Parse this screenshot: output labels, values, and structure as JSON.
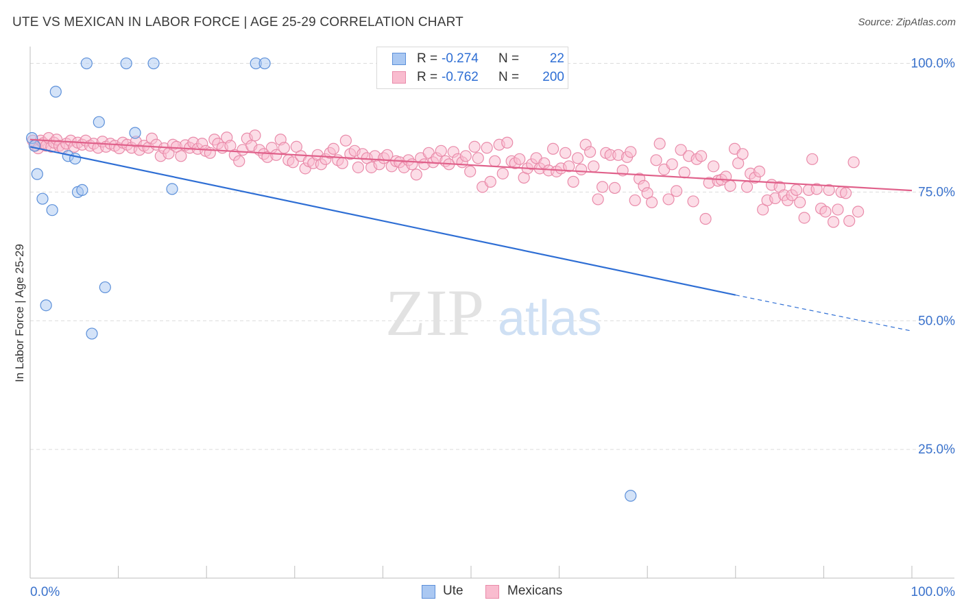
{
  "title": "UTE VS MEXICAN IN LABOR FORCE | AGE 25-29 CORRELATION CHART",
  "source": "Source: ZipAtlas.com",
  "watermark": {
    "zip": "ZIP",
    "atlas": "atlas"
  },
  "legend": {
    "r_label": "R =",
    "n_label": "N =",
    "rows": [
      {
        "r": "-0.274",
        "n": "22"
      },
      {
        "r": "-0.762",
        "n": "200"
      }
    ]
  },
  "colors": {
    "ute_fill": "#aac8f2",
    "ute_stroke": "#5b8fd9",
    "ute_line": "#2e6ed4",
    "mex_fill": "#f9bccf",
    "mex_stroke": "#e98aa9",
    "mex_line": "#e0608a",
    "axis_text": "#3a72cc",
    "grid": "#dcdcdc"
  },
  "chart_data": {
    "type": "scatter",
    "title": "UTE VS MEXICAN IN LABOR FORCE | AGE 25-29 CORRELATION CHART",
    "xlabel": "",
    "ylabel": "In Labor Force | Age 25-29",
    "xlim": [
      0,
      100
    ],
    "ylim": [
      0,
      103
    ],
    "x_tick_labels": [
      "0.0%",
      "100.0%"
    ],
    "y_ticks": [
      25,
      50,
      75,
      100
    ],
    "y_tick_labels": [
      "25.0%",
      "50.0%",
      "75.0%",
      "100.0%"
    ],
    "grid": true,
    "legend_position": "top-center",
    "series": [
      {
        "name": "Ute",
        "r": -0.274,
        "n": 22,
        "points": [
          [
            0.2,
            85.5
          ],
          [
            0.5,
            84.0
          ],
          [
            0.8,
            78.5
          ],
          [
            1.4,
            73.7
          ],
          [
            2.5,
            71.5
          ],
          [
            2.9,
            94.5
          ],
          [
            4.3,
            82.0
          ],
          [
            5.1,
            81.5
          ],
          [
            5.4,
            75.0
          ],
          [
            5.9,
            75.4
          ],
          [
            6.4,
            100.0
          ],
          [
            7.8,
            88.6
          ],
          [
            8.5,
            56.5
          ],
          [
            1.8,
            53.0
          ],
          [
            7.0,
            47.5
          ],
          [
            10.9,
            100.0
          ],
          [
            14.0,
            100.0
          ],
          [
            11.9,
            86.5
          ],
          [
            16.1,
            75.6
          ],
          [
            25.6,
            100.0
          ],
          [
            26.6,
            100.0
          ],
          [
            68.1,
            16.0
          ]
        ],
        "trend": {
          "x0": 0,
          "y0": 83.8,
          "x1": 80,
          "y1": 55.0,
          "dashed_to_x": 100,
          "dashed_to_y": 48.0
        }
      },
      {
        "name": "Mexicans",
        "r": -0.762,
        "n": 200,
        "points": [
          [
            0.3,
            85
          ],
          [
            0.6,
            84
          ],
          [
            0.9,
            83.5
          ],
          [
            1.2,
            85
          ],
          [
            1.5,
            84.5
          ],
          [
            1.8,
            84
          ],
          [
            2.1,
            85.5
          ],
          [
            2.4,
            83.8
          ],
          [
            2.7,
            84.6
          ],
          [
            3.0,
            85.2
          ],
          [
            3.3,
            84
          ],
          [
            3.7,
            83.5
          ],
          [
            4.1,
            84.4
          ],
          [
            4.6,
            85
          ],
          [
            5.0,
            83.8
          ],
          [
            5.4,
            84.6
          ],
          [
            5.9,
            84.2
          ],
          [
            6.3,
            85
          ],
          [
            6.8,
            84
          ],
          [
            7.2,
            84.4
          ],
          [
            7.7,
            83.6
          ],
          [
            8.2,
            84.8
          ],
          [
            8.6,
            83.8
          ],
          [
            9.1,
            84.4
          ],
          [
            9.6,
            84
          ],
          [
            10.1,
            83.5
          ],
          [
            10.5,
            84.6
          ],
          [
            11.0,
            84.2
          ],
          [
            11.5,
            83.6
          ],
          [
            12.0,
            84.8
          ],
          [
            12.4,
            83.2
          ],
          [
            12.9,
            84
          ],
          [
            13.4,
            83.6
          ],
          [
            13.8,
            85.4
          ],
          [
            14.3,
            84.2
          ],
          [
            14.8,
            82
          ],
          [
            15.2,
            83.5
          ],
          [
            15.7,
            82.5
          ],
          [
            16.2,
            84.2
          ],
          [
            16.6,
            83.8
          ],
          [
            17.1,
            82
          ],
          [
            17.6,
            84.1
          ],
          [
            18.1,
            83.6
          ],
          [
            18.5,
            84.6
          ],
          [
            19.0,
            83.4
          ],
          [
            19.5,
            84.4
          ],
          [
            19.9,
            83.0
          ],
          [
            20.4,
            82.6
          ],
          [
            20.9,
            85.2
          ],
          [
            21.3,
            84.4
          ],
          [
            21.8,
            83.6
          ],
          [
            22.3,
            85.6
          ],
          [
            22.7,
            84.0
          ],
          [
            23.2,
            82.2
          ],
          [
            23.7,
            81.0
          ],
          [
            24.1,
            83.2
          ],
          [
            24.6,
            85.4
          ],
          [
            25.1,
            84.0
          ],
          [
            25.5,
            86.0
          ],
          [
            26.0,
            83.2
          ],
          [
            26.5,
            82.4
          ],
          [
            26.9,
            81.8
          ],
          [
            27.4,
            83.6
          ],
          [
            27.9,
            82.2
          ],
          [
            28.4,
            85.2
          ],
          [
            28.8,
            83.6
          ],
          [
            29.3,
            81.2
          ],
          [
            29.8,
            80.8
          ],
          [
            30.2,
            83.8
          ],
          [
            30.7,
            82.0
          ],
          [
            31.2,
            79.6
          ],
          [
            31.6,
            81.0
          ],
          [
            32.1,
            80.6
          ],
          [
            32.6,
            82.2
          ],
          [
            33.0,
            80.4
          ],
          [
            33.5,
            81.4
          ],
          [
            34.0,
            82.6
          ],
          [
            34.4,
            83.4
          ],
          [
            34.9,
            81.2
          ],
          [
            35.4,
            80.6
          ],
          [
            35.8,
            85.0
          ],
          [
            36.3,
            82.4
          ],
          [
            36.8,
            83.0
          ],
          [
            37.2,
            79.8
          ],
          [
            37.7,
            82.4
          ],
          [
            38.2,
            81.6
          ],
          [
            38.7,
            79.8
          ],
          [
            39.1,
            82.0
          ],
          [
            39.6,
            80.4
          ],
          [
            40.1,
            81.6
          ],
          [
            40.5,
            82.2
          ],
          [
            41.0,
            80.0
          ],
          [
            41.5,
            81.0
          ],
          [
            41.9,
            80.8
          ],
          [
            42.4,
            79.8
          ],
          [
            42.9,
            81.2
          ],
          [
            43.3,
            80.4
          ],
          [
            43.8,
            78.4
          ],
          [
            44.3,
            81.6
          ],
          [
            44.7,
            80.4
          ],
          [
            45.2,
            82.6
          ],
          [
            45.7,
            80.8
          ],
          [
            46.1,
            81.6
          ],
          [
            46.6,
            83.0
          ],
          [
            47.1,
            81.0
          ],
          [
            47.5,
            80.4
          ],
          [
            48.0,
            82.8
          ],
          [
            48.5,
            81.4
          ],
          [
            49.0,
            80.8
          ],
          [
            49.4,
            82.0
          ],
          [
            49.9,
            79.0
          ],
          [
            50.4,
            83.8
          ],
          [
            50.8,
            81.6
          ],
          [
            51.3,
            76.0
          ],
          [
            51.8,
            83.6
          ],
          [
            52.2,
            77.0
          ],
          [
            52.7,
            81.0
          ],
          [
            53.2,
            84.2
          ],
          [
            53.6,
            78.6
          ],
          [
            54.1,
            84.6
          ],
          [
            54.6,
            81.0
          ],
          [
            55.0,
            80.6
          ],
          [
            55.5,
            81.4
          ],
          [
            56.0,
            77.8
          ],
          [
            56.4,
            79.6
          ],
          [
            56.9,
            80.4
          ],
          [
            57.4,
            81.6
          ],
          [
            57.8,
            79.6
          ],
          [
            58.3,
            80.6
          ],
          [
            58.8,
            79.2
          ],
          [
            59.3,
            83.4
          ],
          [
            59.7,
            79.0
          ],
          [
            60.2,
            79.6
          ],
          [
            60.7,
            82.6
          ],
          [
            61.1,
            80.0
          ],
          [
            61.6,
            77.0
          ],
          [
            62.1,
            81.6
          ],
          [
            62.5,
            79.4
          ],
          [
            63.0,
            84.2
          ],
          [
            63.5,
            82.8
          ],
          [
            63.9,
            80.0
          ],
          [
            64.4,
            73.6
          ],
          [
            64.9,
            76.0
          ],
          [
            65.3,
            82.6
          ],
          [
            65.8,
            82.2
          ],
          [
            66.3,
            75.8
          ],
          [
            66.7,
            82.2
          ],
          [
            67.2,
            79.2
          ],
          [
            67.7,
            81.8
          ],
          [
            68.1,
            82.8
          ],
          [
            68.6,
            73.4
          ],
          [
            69.1,
            77.6
          ],
          [
            69.6,
            76.2
          ],
          [
            70.0,
            74.8
          ],
          [
            70.5,
            73.0
          ],
          [
            71.0,
            81.2
          ],
          [
            71.4,
            84.4
          ],
          [
            71.9,
            79.4
          ],
          [
            72.4,
            73.6
          ],
          [
            72.8,
            80.4
          ],
          [
            73.3,
            75.2
          ],
          [
            73.8,
            83.2
          ],
          [
            74.2,
            78.8
          ],
          [
            74.7,
            82.0
          ],
          [
            75.2,
            73.2
          ],
          [
            75.6,
            81.4
          ],
          [
            76.1,
            82.0
          ],
          [
            76.6,
            69.8
          ],
          [
            77.0,
            76.8
          ],
          [
            77.5,
            80.0
          ],
          [
            78.0,
            77.2
          ],
          [
            78.4,
            77.4
          ],
          [
            78.9,
            78.0
          ],
          [
            79.4,
            76.2
          ],
          [
            79.9,
            83.4
          ],
          [
            80.3,
            80.6
          ],
          [
            80.8,
            82.4
          ],
          [
            81.3,
            76.0
          ],
          [
            81.7,
            78.6
          ],
          [
            82.2,
            77.8
          ],
          [
            82.7,
            79.0
          ],
          [
            83.1,
            71.6
          ],
          [
            83.6,
            73.4
          ],
          [
            84.1,
            76.4
          ],
          [
            84.5,
            73.8
          ],
          [
            85.0,
            76.0
          ],
          [
            85.5,
            74.4
          ],
          [
            85.9,
            73.4
          ],
          [
            86.4,
            74.4
          ],
          [
            86.9,
            75.4
          ],
          [
            87.3,
            73.0
          ],
          [
            87.8,
            70.0
          ],
          [
            88.3,
            75.4
          ],
          [
            88.7,
            81.4
          ],
          [
            89.2,
            75.6
          ],
          [
            89.7,
            71.8
          ],
          [
            90.2,
            71.2
          ],
          [
            90.6,
            75.4
          ],
          [
            91.1,
            69.2
          ],
          [
            91.6,
            71.6
          ],
          [
            92.0,
            75.0
          ],
          [
            92.5,
            74.8
          ],
          [
            92.9,
            69.4
          ],
          [
            93.4,
            80.8
          ],
          [
            93.9,
            71.2
          ]
        ],
        "trend": {
          "x0": 0,
          "y0": 85.2,
          "x1": 100,
          "y1": 75.3
        }
      }
    ]
  }
}
